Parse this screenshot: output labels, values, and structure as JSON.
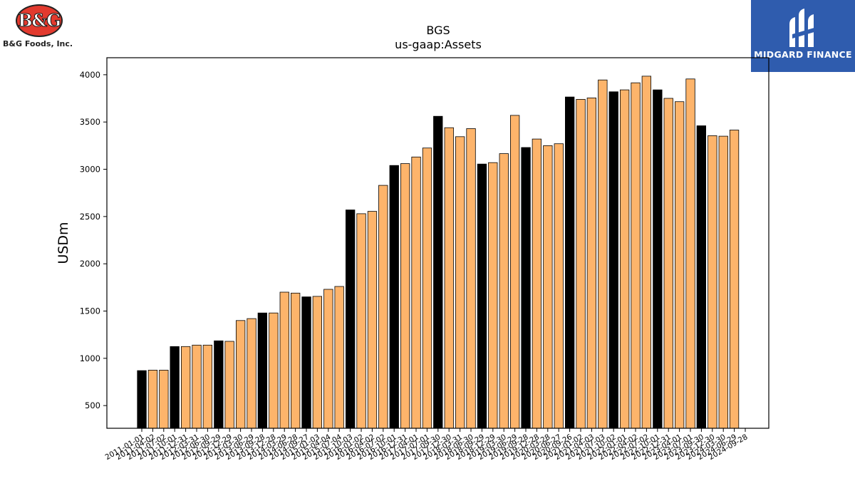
{
  "logos": {
    "left": {
      "mark": "B&G",
      "name": "B&G Foods, Inc."
    },
    "right": {
      "name": "MIDGARD FINANCE"
    }
  },
  "colors": {
    "highlight_bar": "#000000",
    "bar": "#fdb46b",
    "edge": "#000000"
  },
  "chart_data": {
    "type": "bar",
    "title": "BGS",
    "subtitle": "us-gaap:Assets",
    "ylabel": "USDm",
    "xlabel": "",
    "ylim": [
      260,
      4180
    ],
    "yticks": [
      500,
      1000,
      1500,
      2000,
      2500,
      3000,
      3500,
      4000
    ],
    "grid": false,
    "categories": [
      "2011-01-01",
      "2011-04-02",
      "2011-07-02",
      "2011-10-01",
      "2011-12-31",
      "2012-03-31",
      "2012-06-30",
      "2012-09-29",
      "2012-12-29",
      "2013-03-30",
      "2013-06-29",
      "2013-09-28",
      "2013-12-28",
      "2014-03-29",
      "2014-06-28",
      "2014-09-27",
      "2015-01-03",
      "2015-04-04",
      "2015-07-04",
      "2015-10-03",
      "2016-01-02",
      "2016-04-02",
      "2016-07-02",
      "2016-10-01",
      "2016-12-31",
      "2017-04-01",
      "2017-07-01",
      "2017-09-30",
      "2017-12-30",
      "2018-03-31",
      "2018-06-30",
      "2018-09-29",
      "2018-12-29",
      "2019-03-30",
      "2019-06-29",
      "2019-09-28",
      "2019-12-28",
      "2020-03-28",
      "2020-06-27",
      "2020-09-26",
      "2021-01-02",
      "2021-04-03",
      "2021-07-03",
      "2021-10-02",
      "2022-01-01",
      "2022-04-02",
      "2022-07-02",
      "2022-10-01",
      "2022-12-31",
      "2023-04-01",
      "2023-07-01",
      "2023-09-30",
      "2023-12-30",
      "2024-03-30",
      "2024-06-29",
      "2024-09-28"
    ],
    "values": [
      870,
      875,
      875,
      1125,
      1125,
      1140,
      1140,
      1185,
      1180,
      1400,
      1420,
      1480,
      1480,
      1700,
      1690,
      1650,
      1655,
      1730,
      1760,
      2570,
      2530,
      2555,
      2830,
      3040,
      3060,
      3130,
      3225,
      3560,
      3440,
      3345,
      3430,
      3055,
      3070,
      3165,
      3570,
      3230,
      3320,
      3250,
      3270,
      3765,
      3740,
      3755,
      3945,
      3820,
      3840,
      3915,
      3985,
      3840,
      3750,
      3715,
      3955,
      3460,
      3355,
      3350,
      3415,
      null
    ],
    "highlight_indices": [
      0,
      3,
      7,
      11,
      15,
      19,
      23,
      27,
      31,
      35,
      39,
      43,
      47,
      51
    ],
    "tick_labels": [
      "2011-01-01",
      "2011-04-02",
      "2011-07-02",
      "2011-10-01",
      "2011-12-31",
      "2012-03-31",
      "2012-06-30",
      "2012-09-29",
      "2012-12-29",
      "2013-03-30",
      "2013-06-29",
      "2013-09-28",
      "2013-12-28",
      "2014-03-29",
      "2014-06-28",
      "2014-09-27",
      "2015-01-03",
      "2015-04-04",
      "2015-07-04",
      "2015-10-03",
      "2016-01-02",
      "2016-04-02",
      "2016-07-02",
      "2016-10-01",
      "2016-12-31",
      "2017-04-01",
      "2017-07-01",
      "2017-09-30",
      "2017-12-30",
      "2018-03-31",
      "2018-06-30",
      "2018-09-29",
      "2018-12-29",
      "2019-03-30",
      "2019-06-29",
      "2019-09-28",
      "2019-12-28",
      "2020-03-28",
      "2020-06-27",
      "2020-09-26",
      "2021-01-02",
      "2021-04-03",
      "2021-07-03",
      "2021-10-02",
      "2022-01-01",
      "2022-04-02",
      "2022-07-02",
      "2022-10-01",
      "2022-12-31",
      "2023-04-01",
      "2023-07-01",
      "2023-09-30",
      "2023-12-30",
      "2024-03-30",
      "2024-06-29",
      "2024-09-28"
    ]
  }
}
